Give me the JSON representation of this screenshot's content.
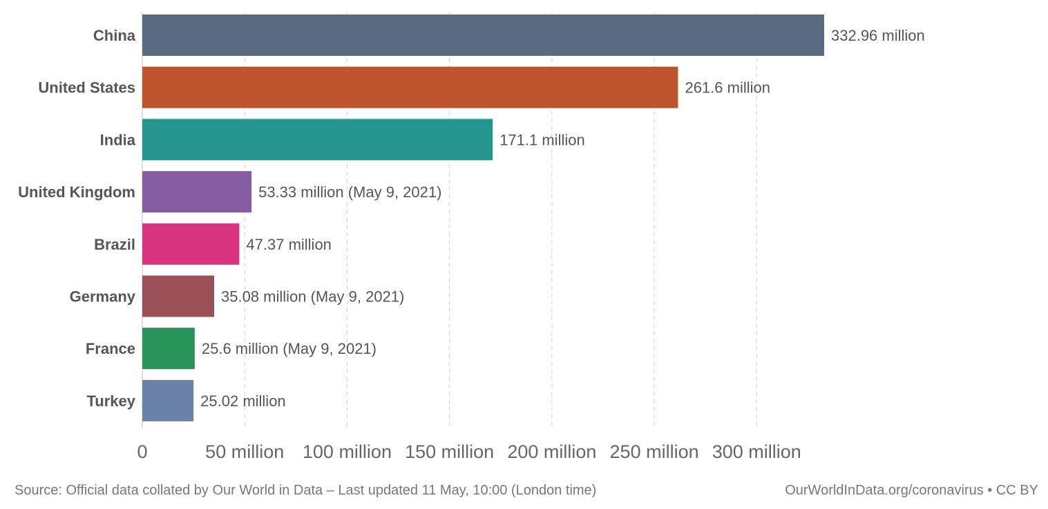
{
  "chart_data": {
    "type": "bar",
    "orientation": "horizontal",
    "title": "",
    "xlabel": "",
    "ylabel": "",
    "xlim": [
      0,
      332.96
    ],
    "grid": true,
    "categories": [
      "China",
      "United States",
      "India",
      "United Kingdom",
      "Brazil",
      "Germany",
      "France",
      "Turkey"
    ],
    "values": [
      332.96,
      261.6,
      171.1,
      53.33,
      47.37,
      35.08,
      25.6,
      25.02
    ],
    "value_labels": [
      "332.96 million",
      "261.6 million",
      "171.1 million",
      "53.33 million (May 9, 2021)",
      "47.37 million",
      "35.08 million (May 9, 2021)",
      "25.6 million (May 9, 2021)",
      "25.02 million"
    ],
    "colors": [
      "#5a6a80",
      "#be542e",
      "#24968f",
      "#855da3",
      "#d93480",
      "#9b5057",
      "#2a935a",
      "#6b81a9"
    ],
    "x_ticks": [
      0,
      50,
      100,
      150,
      200,
      250,
      300
    ],
    "x_tick_labels": [
      "0",
      "50 million",
      "100 million",
      "150 million",
      "200 million",
      "250 million",
      "300 million"
    ]
  },
  "footer": {
    "source": "Source: Official data collated by Our World in Data – Last updated 11 May, 10:00 (London time)",
    "attribution": "OurWorldInData.org/coronavirus • CC BY"
  }
}
